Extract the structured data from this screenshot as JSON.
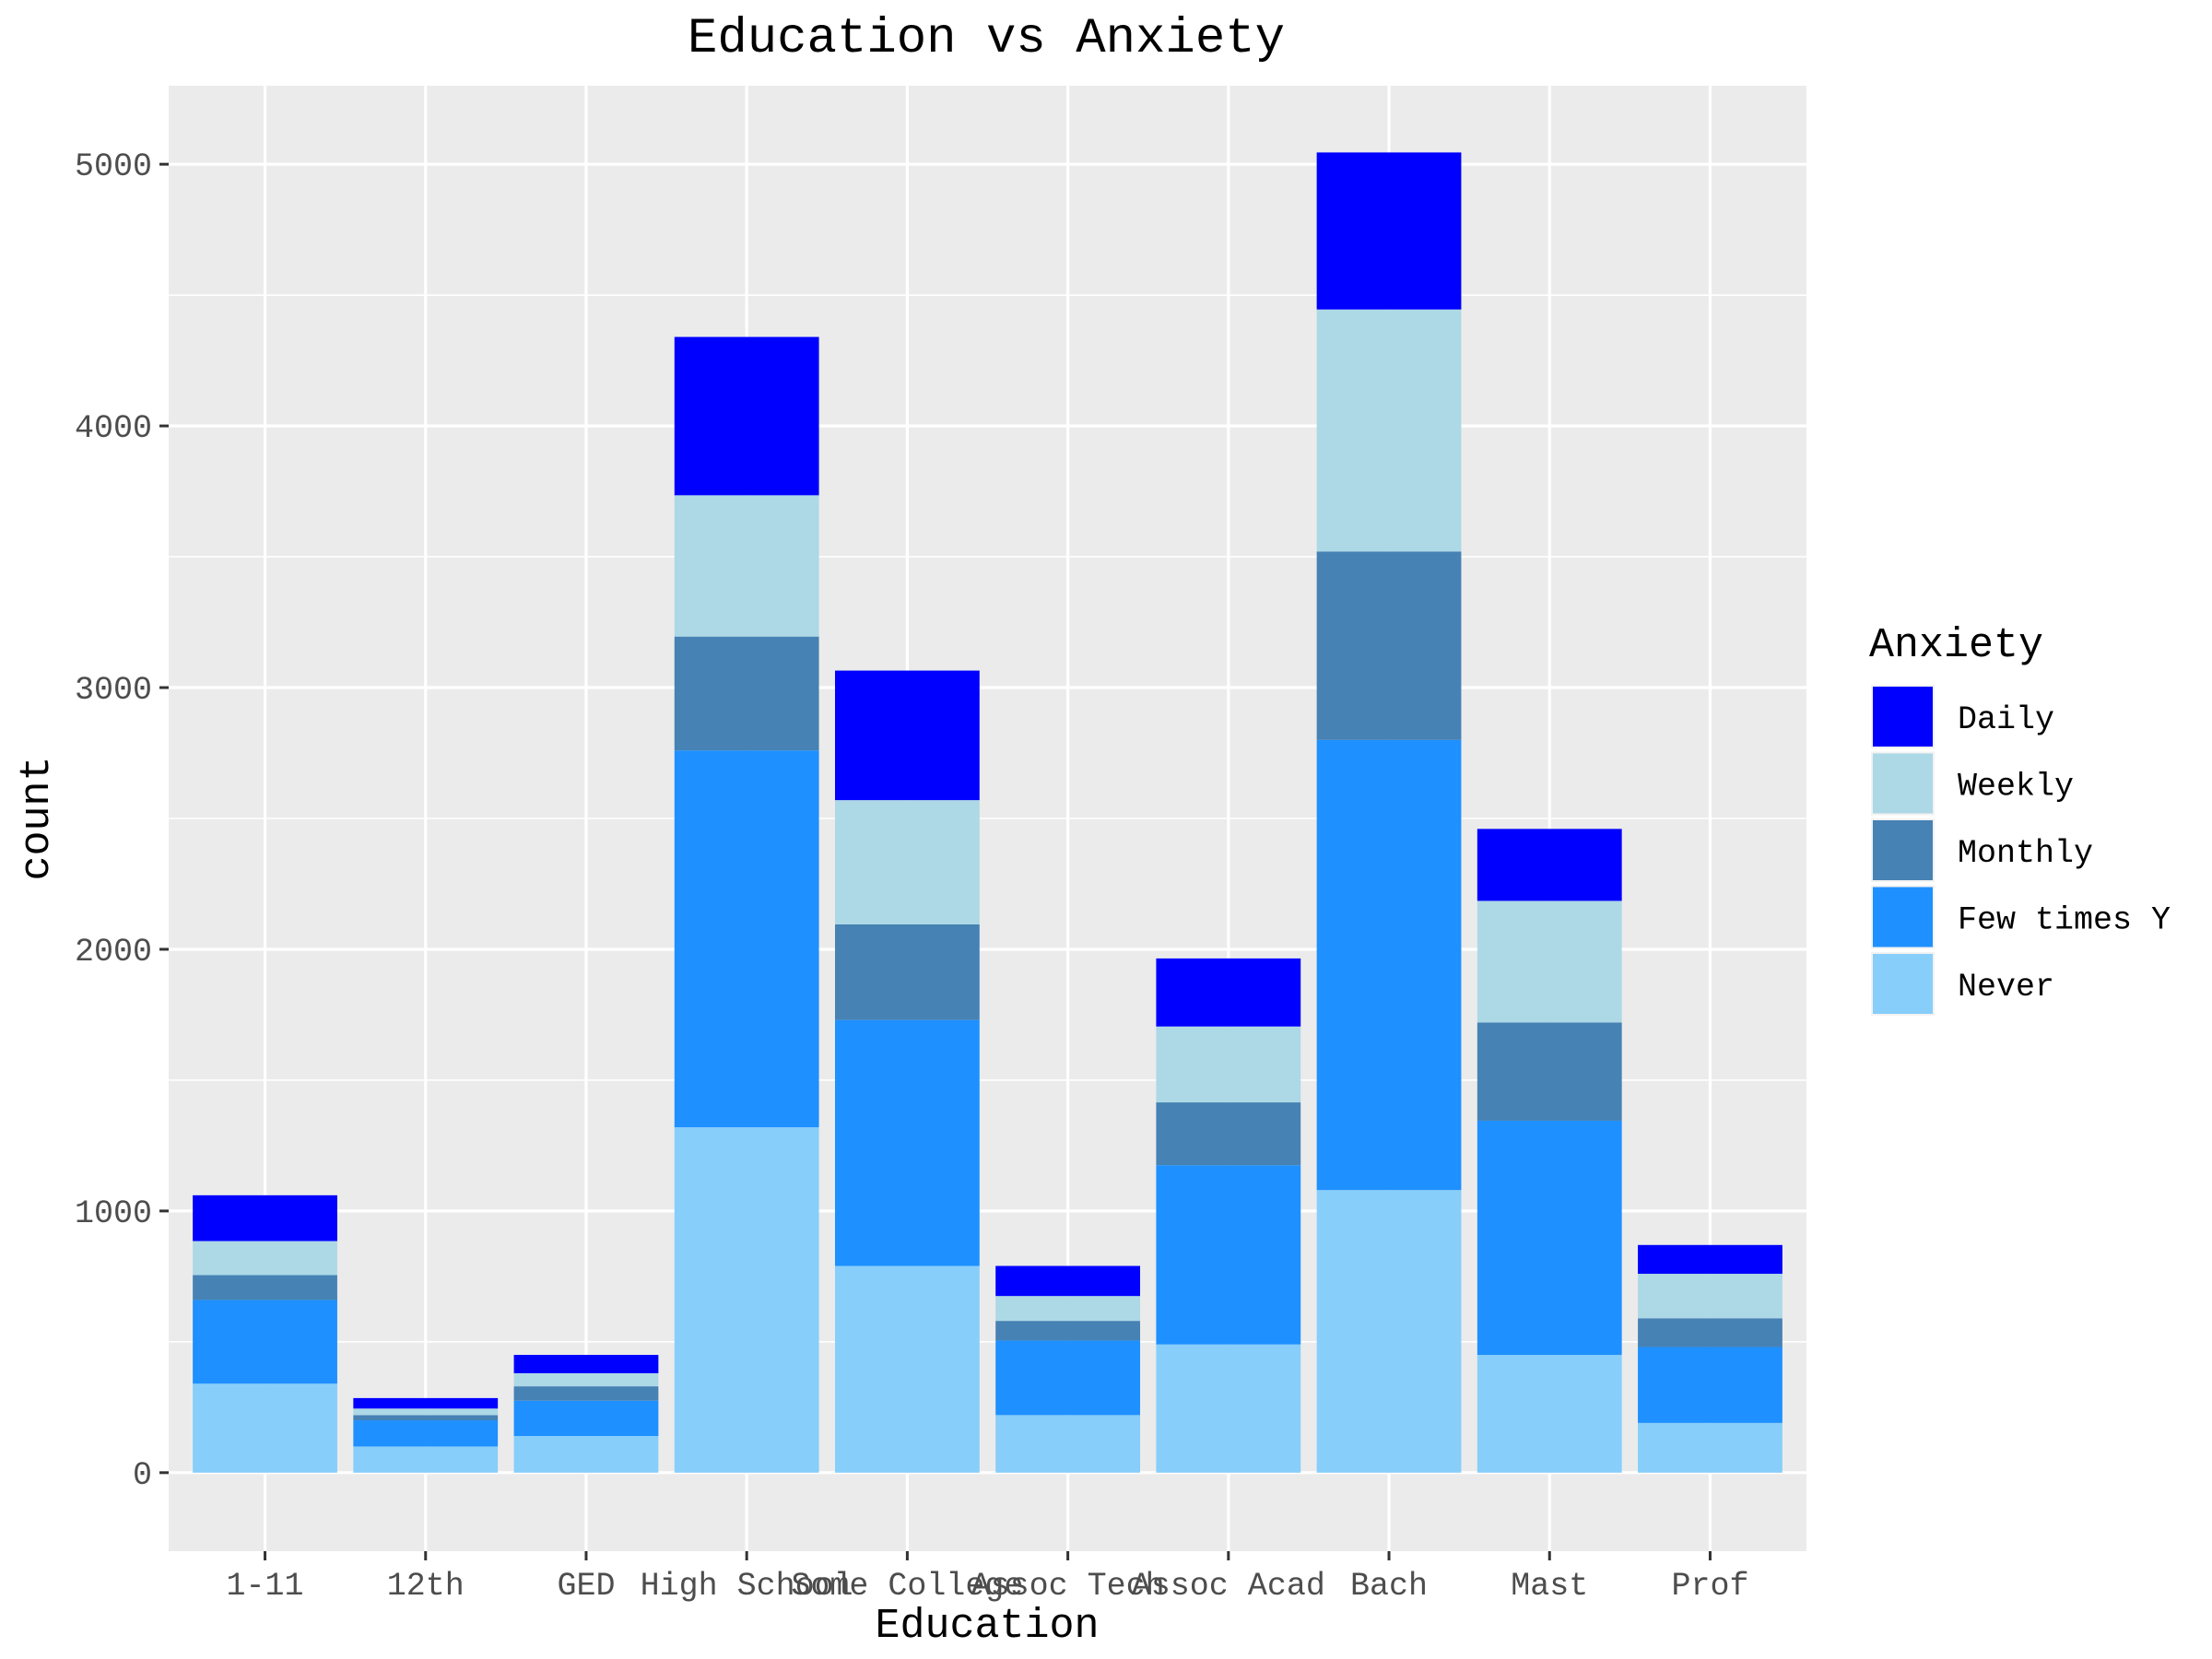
{
  "chart_data": {
    "type": "bar",
    "stacked": true,
    "title": "Education vs Anxiety",
    "xlabel": "Education",
    "ylabel": "count",
    "ylim": [
      -300,
      5300
    ],
    "yticks": [
      0,
      1000,
      2000,
      3000,
      4000,
      5000
    ],
    "grid": true,
    "legend": {
      "title": "Anxiety",
      "position": "right"
    },
    "categories": [
      "1-11",
      "12th",
      "GED",
      "High School",
      "Some College",
      "Assoc Tech",
      "Assoc Acad",
      "Bach",
      "Mast",
      "Prof"
    ],
    "series": [
      {
        "name": "Never",
        "color": "#87CEFA",
        "values": [
          340,
          100,
          140,
          1320,
          790,
          220,
          490,
          1080,
          450,
          190
        ]
      },
      {
        "name": "Few times Y",
        "color": "#1E90FF",
        "values": [
          320,
          100,
          135,
          1440,
          940,
          285,
          685,
          1720,
          895,
          290
        ]
      },
      {
        "name": "Monthly",
        "color": "#4682B4",
        "values": [
          95,
          20,
          55,
          435,
          365,
          75,
          240,
          720,
          375,
          110
        ]
      },
      {
        "name": "Weekly",
        "color": "#ADD8E6",
        "values": [
          130,
          25,
          50,
          540,
          475,
          95,
          290,
          925,
          465,
          170
        ]
      },
      {
        "name": "Daily",
        "color": "#0000FF",
        "values": [
          175,
          40,
          70,
          605,
          495,
          115,
          260,
          600,
          275,
          110
        ]
      }
    ],
    "legend_order": [
      "Daily",
      "Weekly",
      "Monthly",
      "Few times Y",
      "Never"
    ],
    "panel_background": "#EBEBEB",
    "grid_color": "#FFFFFF"
  }
}
